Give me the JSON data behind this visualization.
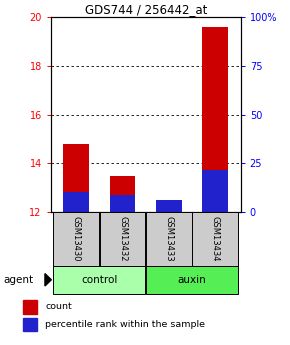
{
  "title": "GDS744 / 256442_at",
  "categories": [
    "GSM13430",
    "GSM13432",
    "GSM13433",
    "GSM13434"
  ],
  "red_values": [
    14.8,
    13.5,
    12.25,
    19.6
  ],
  "blue_values": [
    12.82,
    12.72,
    12.52,
    13.72
  ],
  "y_min": 12,
  "y_max": 20,
  "y_ticks": [
    12,
    14,
    16,
    18,
    20
  ],
  "y2_ticks": [
    0,
    25,
    50,
    75,
    100
  ],
  "y2_tick_labels": [
    "0",
    "25",
    "50",
    "75",
    "100%"
  ],
  "red_color": "#cc0000",
  "blue_color": "#2222cc",
  "label_box_color": "#cccccc",
  "control_color": "#aaffaa",
  "auxin_color": "#55ee55",
  "agent_label": "agent",
  "legend_red": "count",
  "legend_blue": "percentile rank within the sample",
  "bar_width": 0.55
}
